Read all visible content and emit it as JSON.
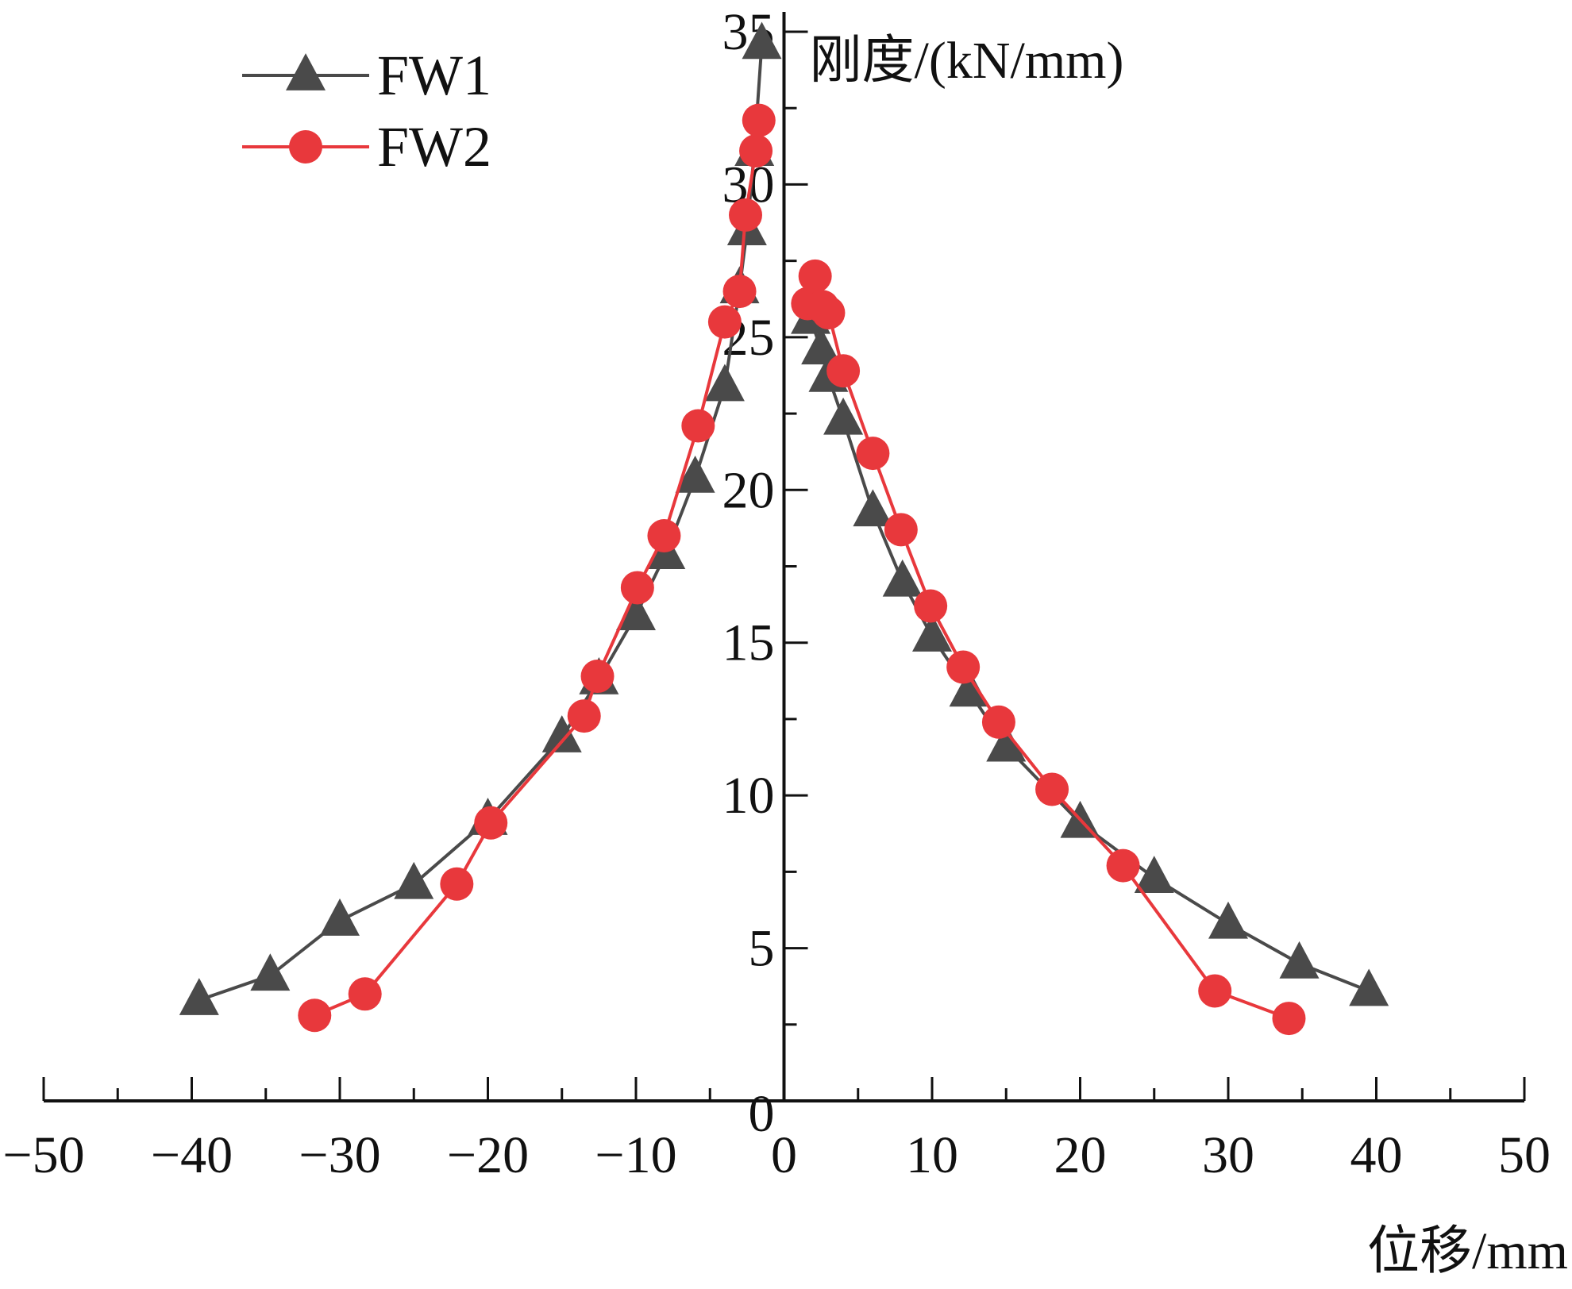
{
  "chart_data": {
    "type": "line",
    "title": "",
    "xlabel": "位移/mm",
    "ylabel": "刚度/(kN/mm)",
    "xlim": [
      -50,
      50
    ],
    "ylim": [
      0,
      35
    ],
    "x_ticks": [
      "−50",
      "−40",
      "−30",
      "−20",
      "−10",
      "0",
      "10",
      "20",
      "30",
      "40",
      "50"
    ],
    "y_ticks": [
      "0",
      "5",
      "10",
      "15",
      "20",
      "25",
      "30",
      "35"
    ],
    "grid": false,
    "legend_position": "top-left",
    "series": [
      {
        "name": "FW1",
        "color": "#4a4a4a",
        "marker": "triangle",
        "segments": [
          [
            [
              -39.5,
              3.3
            ],
            [
              -34.7,
              4.1
            ],
            [
              -30,
              5.9
            ],
            [
              -25,
              7.1
            ],
            [
              -20,
              9.2
            ],
            [
              -15,
              11.9
            ],
            [
              -12.5,
              13.8
            ],
            [
              -10,
              15.9
            ],
            [
              -8,
              17.9
            ],
            [
              -6,
              20.4
            ],
            [
              -4,
              23.4
            ],
            [
              -3,
              26.6
            ],
            [
              -2.5,
              28.5
            ],
            [
              -2,
              31.1
            ],
            [
              -1.5,
              34.6
            ]
          ],
          [
            [
              1.8,
              25.6
            ],
            [
              2.5,
              24.6
            ],
            [
              3,
              23.7
            ],
            [
              4,
              22.3
            ],
            [
              6,
              19.3
            ],
            [
              8,
              17
            ],
            [
              10,
              15.2
            ],
            [
              12.5,
              13.4
            ],
            [
              15,
              11.6
            ],
            [
              20,
              9.1
            ],
            [
              25,
              7.3
            ],
            [
              30,
              5.8
            ],
            [
              34.8,
              4.5
            ],
            [
              39.5,
              3.6
            ]
          ]
        ]
      },
      {
        "name": "FW2",
        "color": "#e8383c",
        "marker": "circle",
        "segments": [
          [
            [
              -31.7,
              2.8
            ],
            [
              -28.3,
              3.5
            ],
            [
              -22.1,
              7.1
            ],
            [
              -19.8,
              9.1
            ],
            [
              -13.5,
              12.6
            ],
            [
              -12.6,
              13.9
            ],
            [
              -9.9,
              16.8
            ],
            [
              -8.1,
              18.5
            ],
            [
              -5.8,
              22.1
            ],
            [
              -4,
              25.5
            ],
            [
              -3,
              26.5
            ],
            [
              -2.6,
              29
            ],
            [
              -1.9,
              31.1
            ],
            [
              -1.7,
              32.1
            ]
          ],
          [
            [
              1.6,
              26.1
            ],
            [
              2.1,
              27
            ],
            [
              2.6,
              26
            ],
            [
              3,
              25.8
            ],
            [
              4,
              23.9
            ],
            [
              6,
              21.2
            ],
            [
              7.9,
              18.7
            ],
            [
              9.9,
              16.2
            ],
            [
              12.1,
              14.2
            ],
            [
              14.5,
              12.4
            ],
            [
              18.1,
              10.2
            ],
            [
              22.9,
              7.7
            ],
            [
              29.1,
              3.6
            ],
            [
              34.1,
              2.7
            ]
          ]
        ]
      }
    ]
  }
}
